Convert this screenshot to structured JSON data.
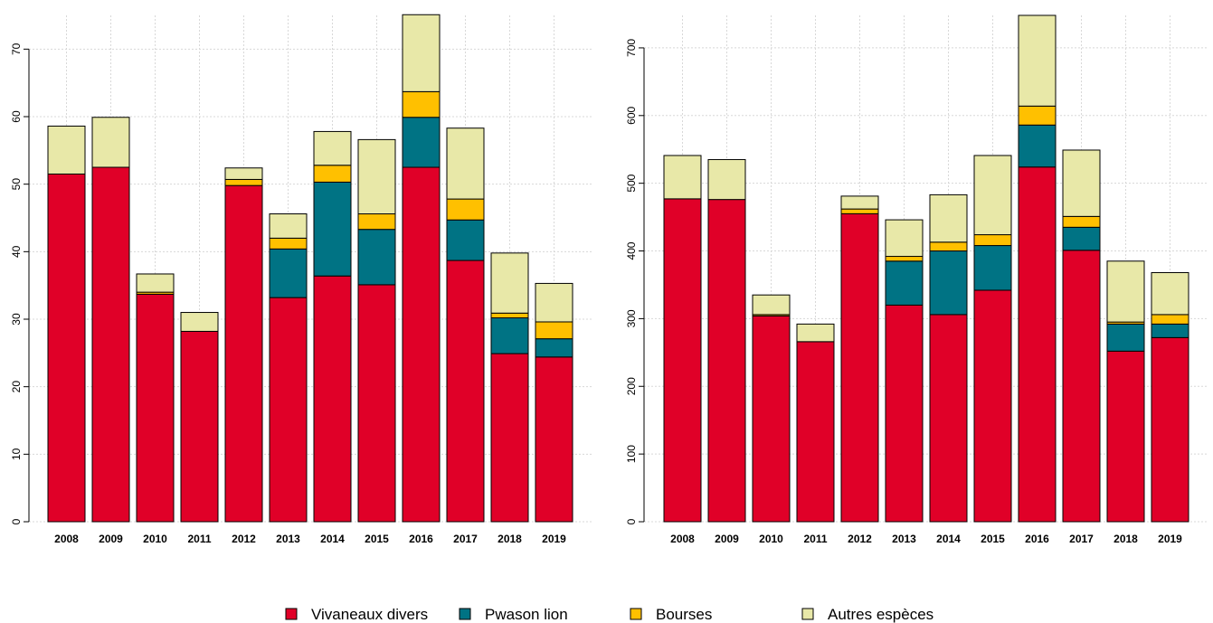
{
  "colors": {
    "Vivaneaux divers": "#e00028",
    "Pwason lion": "#007384",
    "Bourses": "#ffc000",
    "Autres espèces": "#e8e8a8"
  },
  "legend": {
    "position": "bottom-center",
    "items": [
      "Vivaneaux divers",
      "Pwason lion",
      "Bourses",
      "Autres espèces"
    ]
  },
  "chart_data": [
    {
      "type": "bar",
      "stacked": true,
      "grid": true,
      "categories": [
        "2008",
        "2009",
        "2010",
        "2011",
        "2012",
        "2013",
        "2014",
        "2015",
        "2016",
        "2017",
        "2018",
        "2019"
      ],
      "ylim": [
        0,
        75
      ],
      "yticks": [
        0,
        10,
        20,
        30,
        40,
        50,
        60,
        70
      ],
      "series": [
        {
          "name": "Vivaneaux divers",
          "values": [
            51.5,
            52.5,
            33.7,
            28.2,
            49.8,
            33.2,
            36.4,
            35.1,
            52.5,
            38.7,
            24.9,
            24.4
          ]
        },
        {
          "name": "Pwason lion",
          "values": [
            0,
            0,
            0,
            0,
            0,
            7.2,
            13.9,
            8.2,
            7.4,
            6.0,
            5.3,
            2.7
          ]
        },
        {
          "name": "Bourses",
          "values": [
            0,
            0,
            0.3,
            0,
            0.9,
            1.6,
            2.5,
            2.3,
            3.8,
            3.1,
            0.7,
            2.5
          ]
        },
        {
          "name": "Autres espèces",
          "values": [
            7.1,
            7.4,
            2.7,
            2.8,
            1.7,
            3.6,
            5.0,
            11.0,
            11.4,
            10.5,
            8.9,
            5.7
          ]
        }
      ]
    },
    {
      "type": "bar",
      "stacked": true,
      "grid": true,
      "categories": [
        "2008",
        "2009",
        "2010",
        "2011",
        "2012",
        "2013",
        "2014",
        "2015",
        "2016",
        "2017",
        "2018",
        "2019"
      ],
      "ylim": [
        0,
        748
      ],
      "yticks": [
        0,
        100,
        200,
        300,
        400,
        500,
        600,
        700
      ],
      "series": [
        {
          "name": "Vivaneaux divers",
          "values": [
            477,
            476,
            304,
            266,
            455,
            320,
            306,
            342,
            524,
            401,
            252,
            272
          ]
        },
        {
          "name": "Pwason lion",
          "values": [
            0,
            0,
            0,
            0,
            0,
            65,
            94,
            66,
            62,
            34,
            40,
            20
          ]
        },
        {
          "name": "Bourses",
          "values": [
            0,
            0,
            2,
            0,
            7,
            7,
            13,
            16,
            28,
            16,
            3,
            14
          ]
        },
        {
          "name": "Autres espèces",
          "values": [
            64,
            59,
            29,
            26,
            19,
            54,
            70,
            117,
            134,
            98,
            90,
            62
          ]
        }
      ]
    }
  ]
}
